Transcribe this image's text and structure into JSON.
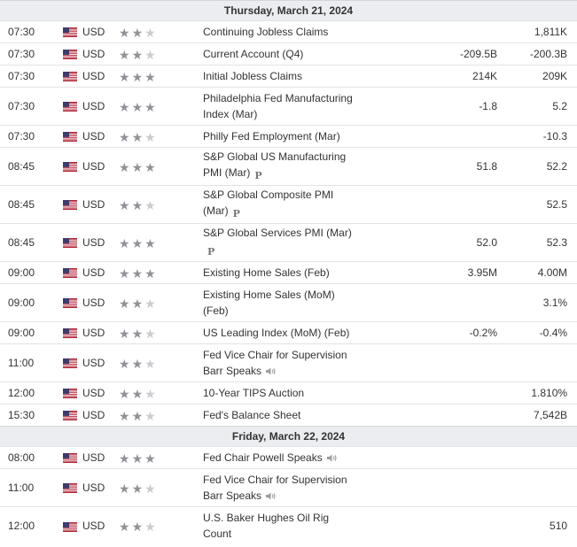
{
  "sections": [
    {
      "date": "Thursday, March 21, 2024",
      "events": [
        {
          "time": "07:30",
          "currency": "USD",
          "stars": 2,
          "lines": [
            "Continuing Jobless Claims"
          ],
          "icon": "",
          "forecast": "",
          "actual": "1,811K"
        },
        {
          "time": "07:30",
          "currency": "USD",
          "stars": 2,
          "lines": [
            "Current Account (Q4)"
          ],
          "icon": "",
          "forecast": "-209.5B",
          "actual": "-200.3B"
        },
        {
          "time": "07:30",
          "currency": "USD",
          "stars": 3,
          "lines": [
            "Initial Jobless Claims"
          ],
          "icon": "",
          "forecast": "214K",
          "actual": "209K"
        },
        {
          "time": "07:30",
          "currency": "USD",
          "stars": 3,
          "lines": [
            "Philadelphia Fed Manufacturing",
            "Index (Mar)"
          ],
          "icon": "",
          "forecast": "-1.8",
          "actual": "5.2"
        },
        {
          "time": "07:30",
          "currency": "USD",
          "stars": 2,
          "lines": [
            "Philly Fed Employment (Mar)"
          ],
          "icon": "",
          "forecast": "",
          "actual": "-10.3"
        },
        {
          "time": "08:45",
          "currency": "USD",
          "stars": 3,
          "lines": [
            "S&P Global US Manufacturing",
            "PMI (Mar)"
          ],
          "icon": "preliminary",
          "forecast": "51.8",
          "actual": "52.2"
        },
        {
          "time": "08:45",
          "currency": "USD",
          "stars": 2,
          "lines": [
            "S&P Global Composite PMI",
            "(Mar)"
          ],
          "icon": "preliminary",
          "forecast": "",
          "actual": "52.5"
        },
        {
          "time": "08:45",
          "currency": "USD",
          "stars": 3,
          "lines": [
            "S&P Global Services PMI (Mar)",
            ""
          ],
          "icon": "preliminary",
          "forecast": "52.0",
          "actual": "52.3"
        },
        {
          "time": "09:00",
          "currency": "USD",
          "stars": 3,
          "lines": [
            "Existing Home Sales (Feb)"
          ],
          "icon": "",
          "forecast": "3.95M",
          "actual": "4.00M"
        },
        {
          "time": "09:00",
          "currency": "USD",
          "stars": 2,
          "lines": [
            "Existing Home Sales (MoM)",
            "(Feb)"
          ],
          "icon": "",
          "forecast": "",
          "actual": "3.1%"
        },
        {
          "time": "09:00",
          "currency": "USD",
          "stars": 2,
          "lines": [
            "US Leading Index (MoM) (Feb)"
          ],
          "icon": "",
          "forecast": "-0.2%",
          "actual": "-0.4%"
        },
        {
          "time": "11:00",
          "currency": "USD",
          "stars": 2,
          "lines": [
            "Fed Vice Chair for Supervision",
            "Barr Speaks"
          ],
          "icon": "speech",
          "forecast": "",
          "actual": ""
        },
        {
          "time": "12:00",
          "currency": "USD",
          "stars": 2,
          "lines": [
            "10-Year TIPS Auction"
          ],
          "icon": "",
          "forecast": "",
          "actual": "1.810%"
        },
        {
          "time": "15:30",
          "currency": "USD",
          "stars": 2,
          "lines": [
            "Fed's Balance Sheet"
          ],
          "icon": "",
          "forecast": "",
          "actual": "7,542B"
        }
      ]
    },
    {
      "date": "Friday, March 22, 2024",
      "events": [
        {
          "time": "08:00",
          "currency": "USD",
          "stars": 3,
          "lines": [
            "Fed Chair Powell Speaks"
          ],
          "icon": "speech",
          "forecast": "",
          "actual": ""
        },
        {
          "time": "11:00",
          "currency": "USD",
          "stars": 2,
          "lines": [
            "Fed Vice Chair for Supervision",
            "Barr Speaks"
          ],
          "icon": "speech",
          "forecast": "",
          "actual": ""
        },
        {
          "time": "12:00",
          "currency": "USD",
          "stars": 2,
          "lines": [
            "U.S. Baker Hughes Oil Rig",
            "Count"
          ],
          "icon": "",
          "forecast": "",
          "actual": "510"
        }
      ]
    }
  ],
  "preliminary_badge": "P",
  "star_glyph": "★",
  "colors": {
    "header_bg": "#ebedf0",
    "row_border": "#e1e3e6",
    "star_on": "#8f9297",
    "star_off": "#c9ccd0"
  }
}
